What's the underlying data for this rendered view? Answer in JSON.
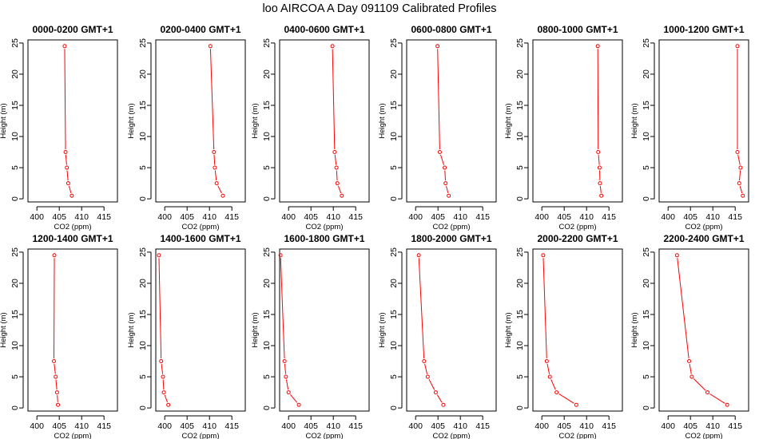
{
  "title": "loo AIRCOA A  Day 091109  Calibrated Profiles",
  "axes": {
    "xlabel": "CO2 (ppm)",
    "ylabel": "Height (m)",
    "xlim": [
      398,
      418
    ],
    "ylim": [
      -0.5,
      25.5
    ],
    "xticks": [
      400,
      405,
      410,
      415
    ],
    "yticks": [
      0,
      5,
      10,
      15,
      20,
      25
    ]
  },
  "colors": {
    "line": "#ff0000",
    "frame": "#000000",
    "background": "#ffffff"
  },
  "chart_data": [
    {
      "type": "line",
      "title": "0000-0200 GMT+1",
      "heights": [
        24.5,
        7.5,
        5.0,
        2.5,
        0.5
      ],
      "co2": [
        406.2,
        406.4,
        406.7,
        407.0,
        407.8
      ]
    },
    {
      "type": "line",
      "title": "0200-0400 GMT+1",
      "heights": [
        24.5,
        7.5,
        5.0,
        2.5,
        0.5
      ],
      "co2": [
        410.2,
        411.0,
        411.2,
        411.6,
        413.0
      ]
    },
    {
      "type": "line",
      "title": "0400-0600 GMT+1",
      "heights": [
        24.5,
        7.5,
        5.0,
        2.5,
        0.5
      ],
      "co2": [
        409.8,
        410.3,
        410.7,
        410.9,
        411.9
      ]
    },
    {
      "type": "line",
      "title": "0600-0800 GMT+1",
      "heights": [
        24.5,
        7.5,
        5.0,
        2.5,
        0.5
      ],
      "co2": [
        404.9,
        405.4,
        406.5,
        406.7,
        407.4
      ]
    },
    {
      "type": "line",
      "title": "0800-1000 GMT+1",
      "heights": [
        24.5,
        7.5,
        5.0,
        2.5,
        0.5
      ],
      "co2": [
        412.5,
        412.6,
        412.9,
        413.0,
        413.3
      ]
    },
    {
      "type": "line",
      "title": "1000-1200 GMT+1",
      "heights": [
        24.5,
        7.5,
        5.0,
        2.5,
        0.5
      ],
      "co2": [
        415.5,
        415.5,
        416.2,
        415.9,
        416.7
      ]
    },
    {
      "type": "line",
      "title": "1200-1400 GMT+1",
      "heights": [
        24.5,
        7.5,
        5.0,
        2.5,
        0.5
      ],
      "co2": [
        403.9,
        403.8,
        404.2,
        404.5,
        404.7
      ]
    },
    {
      "type": "line",
      "title": "1400-1600 GMT+1",
      "heights": [
        24.5,
        7.5,
        5.0,
        2.5,
        0.5
      ],
      "co2": [
        398.7,
        399.2,
        399.6,
        399.8,
        400.8
      ]
    },
    {
      "type": "line",
      "title": "1600-1800 GMT+1",
      "heights": [
        24.5,
        7.5,
        5.0,
        2.5,
        0.5
      ],
      "co2": [
        398.2,
        399.1,
        399.4,
        400.0,
        402.3
      ]
    },
    {
      "type": "line",
      "title": "1800-2000 GMT+1",
      "heights": [
        24.5,
        7.5,
        5.0,
        2.5,
        0.5
      ],
      "co2": [
        400.7,
        401.9,
        402.7,
        404.5,
        406.2
      ]
    },
    {
      "type": "line",
      "title": "2000-2200 GMT+1",
      "heights": [
        24.5,
        7.5,
        5.0,
        2.5,
        0.5
      ],
      "co2": [
        400.3,
        401.1,
        401.8,
        403.3,
        407.7
      ]
    },
    {
      "type": "line",
      "title": "2200-2400 GMT+1",
      "heights": [
        24.5,
        7.5,
        5.0,
        2.5,
        0.5
      ],
      "co2": [
        402.0,
        404.7,
        405.3,
        408.8,
        413.2
      ]
    }
  ]
}
